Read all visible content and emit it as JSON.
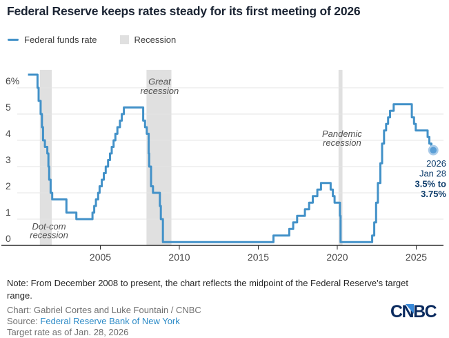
{
  "title": "Federal Reserve keeps rates steady for its first meeting of 2026",
  "legend": {
    "line_label": "Federal funds rate",
    "band_label": "Recession"
  },
  "colors": {
    "line": "#4291c8",
    "recession_band": "#e0e0e0",
    "grid": "#e4e4e4",
    "axis": "#2b2b2b",
    "annotation": "#4f4f4f",
    "end_label": "#0e3d6c",
    "dot": "#5b9fd6",
    "dot_halo": "#a9cbe9",
    "link": "#2d8bc7",
    "logo": "#0a2a5e",
    "logo_accent": "#3788d8"
  },
  "chart_data": {
    "type": "line",
    "step": true,
    "title": "Federal funds rate, 2000 - 2026",
    "xlabel": "",
    "ylabel": "",
    "x_axis": {
      "range": [
        2000.4,
        2026.9
      ],
      "ticks": [
        {
          "value": 2005,
          "label": "2005"
        },
        {
          "value": 2010,
          "label": "2010"
        },
        {
          "value": 2015,
          "label": "2015"
        },
        {
          "value": 2020,
          "label": "2020"
        },
        {
          "value": 2025,
          "label": "2025"
        }
      ]
    },
    "y_axis": {
      "range": [
        0,
        6.7
      ],
      "unit": "%",
      "ticks": [
        {
          "value": 0,
          "label": "0"
        },
        {
          "value": 1,
          "label": "1"
        },
        {
          "value": 2,
          "label": "2"
        },
        {
          "value": 3,
          "label": "3"
        },
        {
          "value": 4,
          "label": "4"
        },
        {
          "value": 5,
          "label": "5"
        },
        {
          "value": 6,
          "label": "6%"
        }
      ]
    },
    "series": [
      {
        "name": "Federal funds rate",
        "points": [
          [
            2000.42,
            6.5
          ],
          [
            2001.02,
            6.0
          ],
          [
            2001.09,
            5.5
          ],
          [
            2001.22,
            5.0
          ],
          [
            2001.3,
            4.5
          ],
          [
            2001.37,
            4.0
          ],
          [
            2001.49,
            3.75
          ],
          [
            2001.64,
            3.5
          ],
          [
            2001.71,
            3.0
          ],
          [
            2001.76,
            2.5
          ],
          [
            2001.85,
            2.0
          ],
          [
            2001.95,
            1.75
          ],
          [
            2002.85,
            1.25
          ],
          [
            2003.48,
            1.0
          ],
          [
            2004.5,
            1.25
          ],
          [
            2004.61,
            1.5
          ],
          [
            2004.72,
            1.75
          ],
          [
            2004.86,
            2.0
          ],
          [
            2004.95,
            2.25
          ],
          [
            2005.09,
            2.5
          ],
          [
            2005.22,
            2.75
          ],
          [
            2005.34,
            3.0
          ],
          [
            2005.49,
            3.25
          ],
          [
            2005.61,
            3.5
          ],
          [
            2005.72,
            3.75
          ],
          [
            2005.84,
            4.0
          ],
          [
            2005.95,
            4.25
          ],
          [
            2006.08,
            4.5
          ],
          [
            2006.24,
            4.75
          ],
          [
            2006.36,
            5.0
          ],
          [
            2006.49,
            5.25
          ],
          [
            2007.71,
            4.75
          ],
          [
            2007.83,
            4.5
          ],
          [
            2007.94,
            4.25
          ],
          [
            2008.06,
            3.5
          ],
          [
            2008.09,
            3.0
          ],
          [
            2008.21,
            2.25
          ],
          [
            2008.33,
            2.0
          ],
          [
            2008.77,
            1.5
          ],
          [
            2008.83,
            1.0
          ],
          [
            2008.96,
            0.125
          ],
          [
            2015.96,
            0.375
          ],
          [
            2016.96,
            0.625
          ],
          [
            2017.21,
            0.875
          ],
          [
            2017.46,
            1.125
          ],
          [
            2017.95,
            1.375
          ],
          [
            2018.22,
            1.625
          ],
          [
            2018.45,
            1.875
          ],
          [
            2018.74,
            2.125
          ],
          [
            2018.97,
            2.375
          ],
          [
            2019.58,
            2.125
          ],
          [
            2019.72,
            1.875
          ],
          [
            2019.83,
            1.625
          ],
          [
            2020.17,
            1.125
          ],
          [
            2020.21,
            0.125
          ],
          [
            2022.21,
            0.375
          ],
          [
            2022.34,
            0.875
          ],
          [
            2022.46,
            1.625
          ],
          [
            2022.57,
            2.375
          ],
          [
            2022.73,
            3.125
          ],
          [
            2022.84,
            3.875
          ],
          [
            2022.96,
            4.375
          ],
          [
            2023.09,
            4.625
          ],
          [
            2023.22,
            4.875
          ],
          [
            2023.34,
            5.125
          ],
          [
            2023.57,
            5.375
          ],
          [
            2024.72,
            4.875
          ],
          [
            2024.86,
            4.625
          ],
          [
            2024.97,
            4.375
          ],
          [
            2025.72,
            4.125
          ],
          [
            2025.83,
            3.875
          ],
          [
            2025.96,
            3.625
          ],
          [
            2026.08,
            3.625
          ]
        ]
      }
    ],
    "recessions": [
      {
        "name": "Dot-com recession",
        "start": 2001.17,
        "end": 2001.92,
        "label_lines": [
          "Dot-com",
          "recession"
        ],
        "label_x": 2001.75,
        "label_y_rates": [
          0.6,
          0.27
        ]
      },
      {
        "name": "Great recession",
        "start": 2007.92,
        "end": 2009.5,
        "label_lines": [
          "Great",
          "recession"
        ],
        "label_x": 2008.75,
        "label_y_rates": [
          6.12,
          5.76
        ]
      },
      {
        "name": "Pandemic recession",
        "start": 2020.08,
        "end": 2020.33,
        "label_lines": [
          "Pandemic",
          "recession"
        ],
        "label_x": 2020.3,
        "label_y_rates": [
          4.13,
          3.79
        ]
      }
    ],
    "end_label": {
      "lines": [
        {
          "text": "2026",
          "bold": false
        },
        {
          "text": "Jan 28",
          "bold": false
        },
        {
          "text": "3.5% to",
          "bold": true
        },
        {
          "text": "3.75%",
          "bold": true
        }
      ],
      "latest_point": {
        "date": "Jan 28, 2026",
        "midpoint": 3.625,
        "range": "3.5% to 3.75%"
      }
    },
    "legend_position": "top-left",
    "grid": true
  },
  "notes": {
    "note": "Note: From December 2008 to present, the chart reflects the midpoint of the Federal Reserve's target range.",
    "credit": "Chart: Gabriel Cortes and Luke Fountain / CNBC",
    "source_label": "Source: ",
    "source_link": "Federal Reserve Bank of New York",
    "target": "Target rate as of Jan. 28, 2026"
  },
  "logo": "CNBC"
}
